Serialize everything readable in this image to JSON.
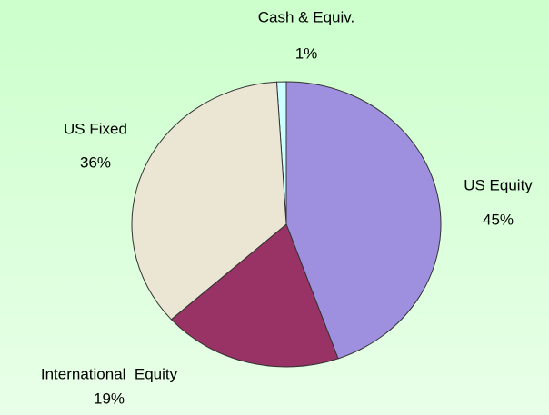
{
  "chart_data": {
    "type": "pie",
    "categories": [
      "Cash & Equiv.",
      "US Equity",
      "International  Equity",
      "US Fixed"
    ],
    "values": [
      1,
      45,
      19,
      36
    ],
    "value_labels": [
      "1%",
      "45%",
      "19%",
      "36%"
    ],
    "colors": [
      "#ccffff",
      "#9f8fdf",
      "#993366",
      "#ebe6d4"
    ]
  }
}
